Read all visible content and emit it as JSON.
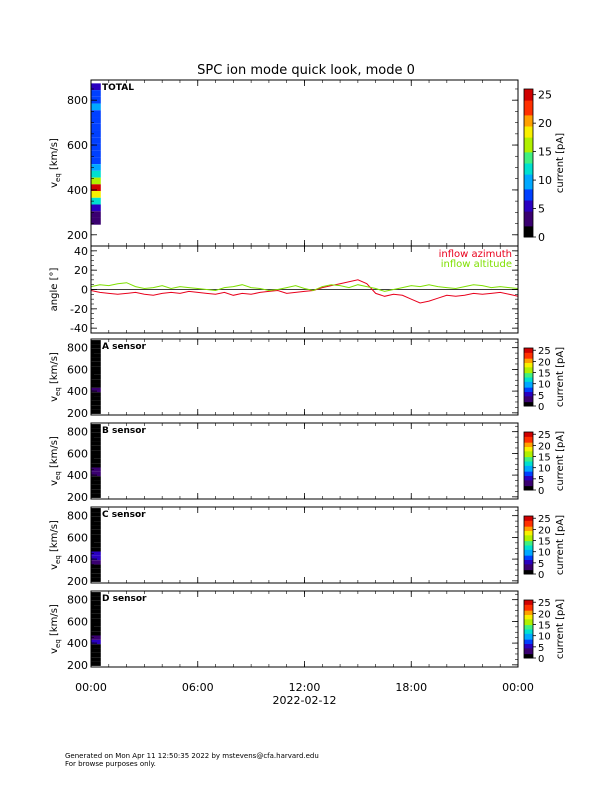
{
  "title": "SPC ion mode quick look, mode 0",
  "footer": {
    "line1": "Generated on Mon Apr 11 12:50:35 2022 by mstevens@cfa.harvard.edu",
    "line2": "For browse purposes only."
  },
  "colors": {
    "azimuth": "#e8001c",
    "altitude": "#7fe000",
    "colormap": [
      "#000000",
      "#3a0070",
      "#2a00c0",
      "#0040ff",
      "#00a8ff",
      "#00e0d0",
      "#40f080",
      "#b0f000",
      "#f8f000",
      "#ffa000",
      "#ff3000",
      "#d00000"
    ]
  },
  "chart_data": [
    {
      "type": "heatmap",
      "label": "TOTAL",
      "ylabel_main": "v",
      "ylabel_sub": "eq",
      "ylabel_unit": "[km/s]",
      "ylim": [
        150,
        890
      ],
      "yticks": [
        200,
        400,
        600,
        800
      ],
      "xlim": [
        0,
        24
      ],
      "colorbar": {
        "label": "current [pA]",
        "range": [
          0,
          26
        ],
        "ticks": [
          0,
          5,
          10,
          15,
          20,
          25
        ]
      },
      "cells_time": [
        0.0,
        0.55
      ],
      "cells": [
        [
          860,
          6
        ],
        [
          830,
          7
        ],
        [
          800,
          8
        ],
        [
          770,
          9
        ],
        [
          740,
          8
        ],
        [
          710,
          8
        ],
        [
          680,
          8
        ],
        [
          650,
          8
        ],
        [
          620,
          8
        ],
        [
          590,
          8
        ],
        [
          560,
          8
        ],
        [
          530,
          8
        ],
        [
          500,
          9
        ],
        [
          470,
          11
        ],
        [
          440,
          17
        ],
        [
          410,
          24
        ],
        [
          380,
          18
        ],
        [
          350,
          11
        ],
        [
          320,
          6
        ],
        [
          290,
          4
        ],
        [
          260,
          3
        ]
      ]
    },
    {
      "type": "line",
      "ylabel": "angle [°]",
      "ylim": [
        -45,
        45
      ],
      "yticks": [
        -40,
        -20,
        0,
        20,
        40
      ],
      "xlim": [
        0,
        24
      ],
      "series": [
        {
          "name": "inflow azimuth",
          "x": [
            0,
            0.5,
            1,
            1.5,
            2,
            2.5,
            3,
            3.5,
            4,
            4.5,
            5,
            5.5,
            6,
            6.5,
            7,
            7.5,
            8,
            8.5,
            9,
            9.5,
            10,
            10.5,
            11,
            11.5,
            12,
            12.5,
            13,
            13.5,
            14,
            14.5,
            15,
            15.5,
            16,
            16.5,
            17,
            17.5,
            18,
            18.5,
            19,
            19.5,
            20,
            20.5,
            21,
            21.5,
            22,
            22.5,
            23,
            23.5,
            24
          ],
          "y": [
            -1,
            -3,
            -4,
            -5,
            -4,
            -3,
            -5,
            -6,
            -4,
            -3,
            -4,
            -2,
            -3,
            -4,
            -5,
            -3,
            -6,
            -4,
            -5,
            -3,
            -2,
            -1,
            -4,
            -3,
            -2,
            -1,
            2,
            4,
            6,
            8,
            10,
            6,
            -4,
            -7,
            -5,
            -6,
            -10,
            -14,
            -12,
            -9,
            -6,
            -7,
            -6,
            -4,
            -5,
            -4,
            -3,
            -5,
            -7
          ]
        },
        {
          "name": "inflow altitude",
          "x": [
            0,
            0.5,
            1,
            1.5,
            2,
            2.5,
            3,
            3.5,
            4,
            4.5,
            5,
            5.5,
            6,
            6.5,
            7,
            7.5,
            8,
            8.5,
            9,
            9.5,
            10,
            10.5,
            11,
            11.5,
            12,
            12.5,
            13,
            13.5,
            14,
            14.5,
            15,
            15.5,
            16,
            16.5,
            17,
            17.5,
            18,
            18.5,
            19,
            19.5,
            20,
            20.5,
            21,
            21.5,
            22,
            22.5,
            23,
            23.5,
            24
          ],
          "y": [
            3,
            5,
            4,
            6,
            7,
            3,
            1,
            2,
            4,
            1,
            3,
            2,
            1,
            0,
            -1,
            2,
            3,
            5,
            2,
            1,
            -1,
            0,
            2,
            4,
            1,
            -1,
            3,
            5,
            4,
            2,
            5,
            3,
            1,
            -2,
            0,
            2,
            4,
            3,
            5,
            3,
            2,
            1,
            3,
            5,
            4,
            2,
            3,
            2,
            1
          ]
        }
      ]
    },
    {
      "type": "heatmap",
      "label": "A sensor",
      "ylabel_main": "v",
      "ylabel_sub": "eq",
      "ylabel_unit": "[km/s]",
      "ylim": [
        180,
        880
      ],
      "yticks": [
        200,
        400,
        600,
        800
      ],
      "xlim": [
        0,
        24
      ],
      "colorbar": {
        "label": "current [pA]",
        "range": [
          0,
          26
        ],
        "ticks": [
          0,
          5,
          10,
          15,
          20,
          25
        ]
      },
      "cells_time": [
        0.0,
        0.55
      ],
      "cells": [
        [
          850,
          1
        ],
        [
          810,
          1
        ],
        [
          770,
          1
        ],
        [
          730,
          1
        ],
        [
          690,
          1
        ],
        [
          650,
          0
        ],
        [
          610,
          0
        ],
        [
          570,
          1
        ],
        [
          530,
          1
        ],
        [
          490,
          1
        ],
        [
          450,
          2
        ],
        [
          410,
          3
        ],
        [
          370,
          2
        ],
        [
          330,
          1
        ],
        [
          290,
          1
        ],
        [
          250,
          0
        ],
        [
          210,
          0
        ]
      ]
    },
    {
      "type": "heatmap",
      "label": "B sensor",
      "ylabel_main": "v",
      "ylabel_sub": "eq",
      "ylabel_unit": "[km/s]",
      "ylim": [
        180,
        880
      ],
      "yticks": [
        200,
        400,
        600,
        800
      ],
      "xlim": [
        0,
        24
      ],
      "colorbar": {
        "label": "current [pA]",
        "range": [
          0,
          26
        ],
        "ticks": [
          0,
          5,
          10,
          15,
          20,
          25
        ]
      },
      "cells_time": [
        0.0,
        0.55
      ],
      "cells": [
        [
          850,
          1
        ],
        [
          810,
          1
        ],
        [
          770,
          1
        ],
        [
          730,
          1
        ],
        [
          690,
          1
        ],
        [
          650,
          0
        ],
        [
          610,
          1
        ],
        [
          570,
          1
        ],
        [
          530,
          1
        ],
        [
          490,
          2
        ],
        [
          450,
          3
        ],
        [
          410,
          4
        ],
        [
          370,
          2
        ],
        [
          330,
          1
        ],
        [
          290,
          1
        ],
        [
          250,
          0
        ],
        [
          210,
          0
        ]
      ]
    },
    {
      "type": "heatmap",
      "label": "C sensor",
      "ylabel_main": "v",
      "ylabel_sub": "eq",
      "ylabel_unit": "[km/s]",
      "ylim": [
        180,
        880
      ],
      "yticks": [
        200,
        400,
        600,
        800
      ],
      "xlim": [
        0,
        24
      ],
      "colorbar": {
        "label": "current [pA]",
        "range": [
          0,
          26
        ],
        "ticks": [
          0,
          5,
          10,
          15,
          20,
          25
        ]
      },
      "cells_time": [
        0.0,
        0.55
      ],
      "cells": [
        [
          850,
          1
        ],
        [
          810,
          1
        ],
        [
          770,
          1
        ],
        [
          730,
          1
        ],
        [
          690,
          1
        ],
        [
          650,
          1
        ],
        [
          610,
          1
        ],
        [
          570,
          1
        ],
        [
          530,
          1
        ],
        [
          490,
          2
        ],
        [
          450,
          5
        ],
        [
          410,
          6
        ],
        [
          370,
          3
        ],
        [
          330,
          1
        ],
        [
          290,
          1
        ],
        [
          250,
          0
        ],
        [
          210,
          0
        ]
      ]
    },
    {
      "type": "heatmap",
      "label": "D sensor",
      "ylabel_main": "v",
      "ylabel_sub": "eq",
      "ylabel_unit": "[km/s]",
      "ylim": [
        180,
        880
      ],
      "yticks": [
        200,
        400,
        600,
        800
      ],
      "xlim": [
        0,
        24
      ],
      "colorbar": {
        "label": "current [pA]",
        "range": [
          0,
          26
        ],
        "ticks": [
          0,
          5,
          10,
          15,
          20,
          25
        ]
      },
      "cells_time": [
        0.0,
        0.55
      ],
      "cells": [
        [
          850,
          1
        ],
        [
          810,
          1
        ],
        [
          770,
          1
        ],
        [
          730,
          1
        ],
        [
          690,
          1
        ],
        [
          650,
          0
        ],
        [
          610,
          1
        ],
        [
          570,
          1
        ],
        [
          530,
          1
        ],
        [
          490,
          2
        ],
        [
          450,
          4
        ],
        [
          410,
          5
        ],
        [
          370,
          2
        ],
        [
          330,
          1
        ],
        [
          290,
          1
        ],
        [
          250,
          0
        ],
        [
          210,
          0
        ]
      ]
    }
  ],
  "xaxis": {
    "ticks": [
      0,
      6,
      12,
      18,
      24
    ],
    "tick_labels": [
      "00:00",
      "06:00",
      "12:00",
      "18:00",
      "00:00"
    ],
    "date_label": "2022-02-12"
  }
}
